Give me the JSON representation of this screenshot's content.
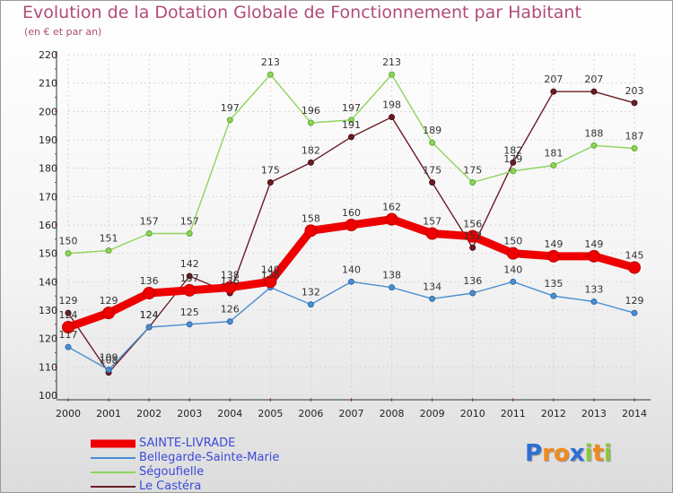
{
  "chart_data": {
    "type": "line",
    "title": "Evolution de la Dotation Globale de Fonctionnement par Habitant",
    "subtitle": "(en € et par an)",
    "xlabel": "",
    "ylabel": "",
    "ylim": [
      100,
      220
    ],
    "yticks": [
      100,
      110,
      120,
      130,
      140,
      150,
      160,
      170,
      180,
      190,
      200,
      210,
      220
    ],
    "x": [
      "2000",
      "2001",
      "2002",
      "2003",
      "2004",
      "2005",
      "2006",
      "2007",
      "2008",
      "2009",
      "2010",
      "2011",
      "2012",
      "2013",
      "2014"
    ],
    "grid": true,
    "legend_position": "bottom-left",
    "series": [
      {
        "name": "SAINTE-LIVRADE",
        "color": "#ee0000",
        "values": [
          124,
          129,
          136,
          137,
          138,
          140,
          158,
          160,
          162,
          157,
          156,
          150,
          149,
          149,
          145
        ]
      },
      {
        "name": "Bellegarde-Sainte-Marie",
        "color": "#4a8fd0",
        "values": [
          117,
          109,
          124,
          125,
          126,
          138,
          132,
          140,
          138,
          134,
          136,
          140,
          135,
          133,
          129
        ]
      },
      {
        "name": "Ségoufielle",
        "color": "#8ed45a",
        "values": [
          150,
          151,
          157,
          157,
          197,
          213,
          196,
          197,
          213,
          189,
          175,
          179,
          181,
          188,
          187
        ]
      },
      {
        "name": "Le Castéra",
        "color": "#6b1c24",
        "values": [
          129,
          108,
          124,
          142,
          136,
          175,
          182,
          191,
          198,
          175,
          152,
          182,
          207,
          207,
          203
        ]
      }
    ]
  },
  "logo": {
    "letters": [
      "P",
      "r",
      "o",
      "x",
      "i",
      "t",
      "i"
    ],
    "colors": [
      "#2f6fd4",
      "#f08a1c",
      "#f08a1c",
      "#2f6fd4",
      "#8cc83c",
      "#f08a1c",
      "#8cc83c"
    ]
  }
}
